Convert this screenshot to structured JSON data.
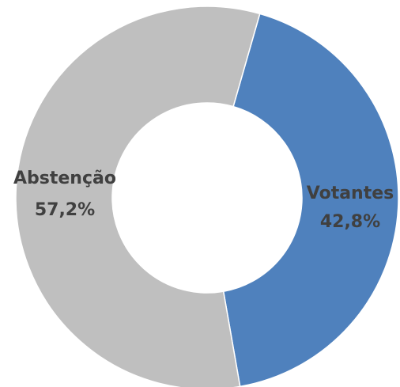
{
  "chart_data": {
    "type": "donut",
    "categories": [
      "Votantes",
      "Abstenção"
    ],
    "values": [
      42.8,
      57.2
    ],
    "value_labels": [
      "42,8%",
      "57,2%"
    ],
    "colors": [
      "#4f81bd",
      "#bfbfbf"
    ]
  }
}
